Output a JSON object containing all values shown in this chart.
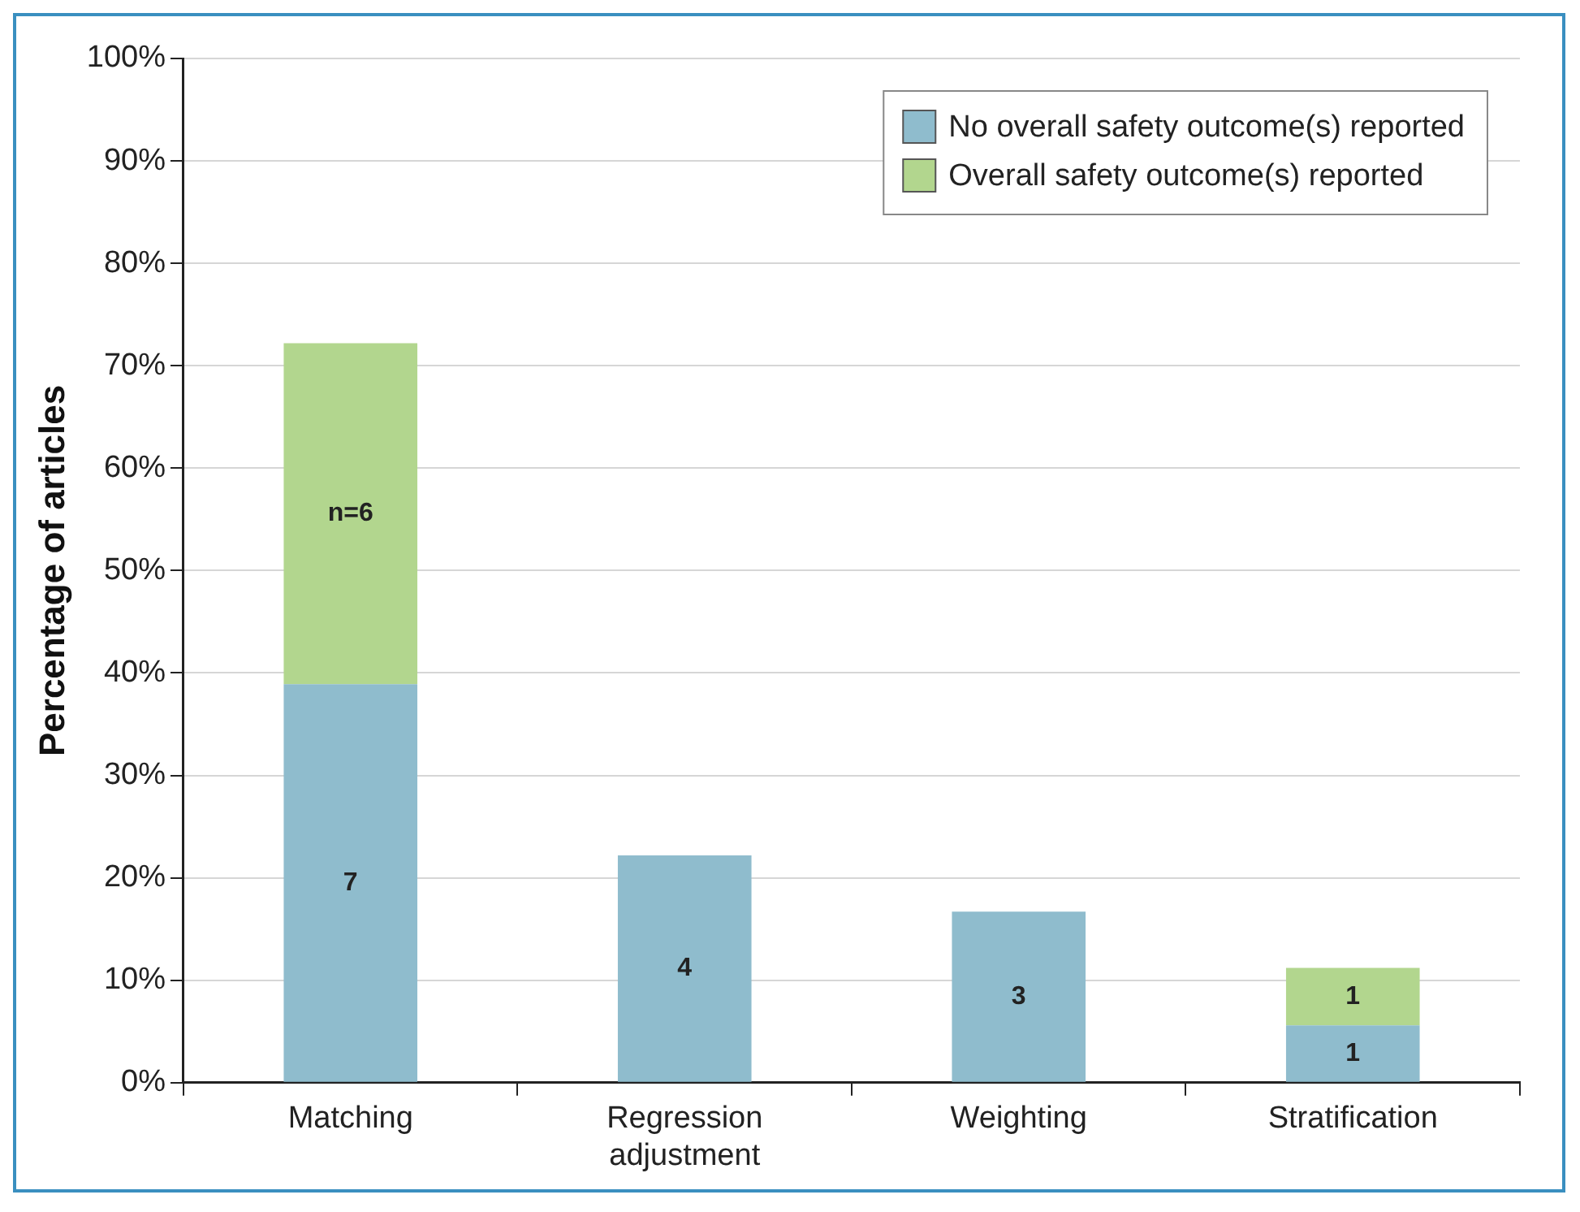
{
  "chart_data": {
    "type": "bar",
    "stacked": true,
    "ylabel": "Percentage of articles",
    "categories": [
      "Matching",
      "Regression adjustment",
      "Weighting",
      "Stratification"
    ],
    "series": [
      {
        "name": "No overall safety outcome(s) reported",
        "color": "#8fbccd",
        "values": [
          38.9,
          22.2,
          16.7,
          5.6
        ]
      },
      {
        "name": "Overall safety outcome(s) reported",
        "color": "#b2d68e",
        "values": [
          33.3,
          null,
          null,
          5.6
        ]
      }
    ],
    "annotations": [
      "7",
      "4",
      "3",
      "1",
      "n=6",
      "1"
    ],
    "ylim": [
      0,
      100
    ],
    "yticks": [
      {
        "value": 0,
        "label": "0%"
      },
      {
        "value": 10,
        "label": "10%"
      },
      {
        "value": 20,
        "label": "20%"
      },
      {
        "value": 30,
        "label": "30%"
      },
      {
        "value": 40,
        "label": "40%"
      },
      {
        "value": 50,
        "label": "50%"
      },
      {
        "value": 60,
        "label": "60%"
      },
      {
        "value": 70,
        "label": "70%"
      },
      {
        "value": 80,
        "label": "80%"
      },
      {
        "value": 90,
        "label": "90%"
      },
      {
        "value": 100,
        "label": "100%"
      }
    ],
    "grid": "y",
    "legend": "top right"
  }
}
